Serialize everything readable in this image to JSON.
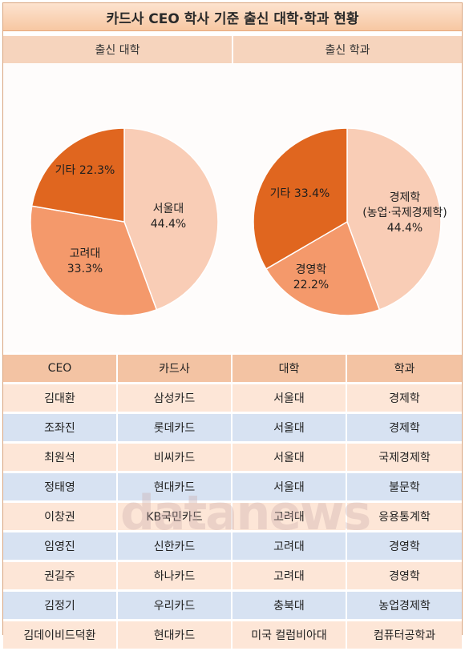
{
  "title": "카드사 CEO 학사 기준 출신 대학·학과 현황",
  "watermark": "datanews",
  "chart_data": [
    {
      "type": "pie",
      "title": "출신 대학",
      "slices": [
        {
          "label": "서울대",
          "pct_label": "44.4%",
          "value": 44.4,
          "color": "#f9cdb6"
        },
        {
          "label": "고려대",
          "pct_label": "33.3%",
          "value": 33.3,
          "color": "#f4996b"
        },
        {
          "label": "기타",
          "pct_label": "22.3%",
          "value": 22.3,
          "color": "#e0661f"
        }
      ]
    },
    {
      "type": "pie",
      "title": "출신 학과",
      "slices": [
        {
          "label": "경제학",
          "sublabel": "(농업·국제경제학)",
          "pct_label": "44.4%",
          "value": 44.4,
          "color": "#f9cdb6"
        },
        {
          "label": "경영학",
          "pct_label": "22.2%",
          "value": 22.2,
          "color": "#f4996b"
        },
        {
          "label": "기타",
          "pct_label": "33.4%",
          "value": 33.4,
          "color": "#e0661f"
        }
      ]
    }
  ],
  "table": {
    "headers": [
      "CEO",
      "카드사",
      "대학",
      "학과"
    ],
    "rows": [
      [
        "김대환",
        "삼성카드",
        "서울대",
        "경제학"
      ],
      [
        "조좌진",
        "롯데카드",
        "서울대",
        "경제학"
      ],
      [
        "최원석",
        "비씨카드",
        "서울대",
        "국제경제학"
      ],
      [
        "정태영",
        "현대카드",
        "서울대",
        "불문학"
      ],
      [
        "이창권",
        "KB국민카드",
        "고려대",
        "응용통계학"
      ],
      [
        "임영진",
        "신한카드",
        "고려대",
        "경영학"
      ],
      [
        "권길주",
        "하나카드",
        "고려대",
        "경영학"
      ],
      [
        "김정기",
        "우리카드",
        "충북대",
        "농업경제학"
      ],
      [
        "김데이비드덕환",
        "현대카드",
        "미국 컬럼비아대",
        "컴퓨터공학과"
      ]
    ]
  }
}
